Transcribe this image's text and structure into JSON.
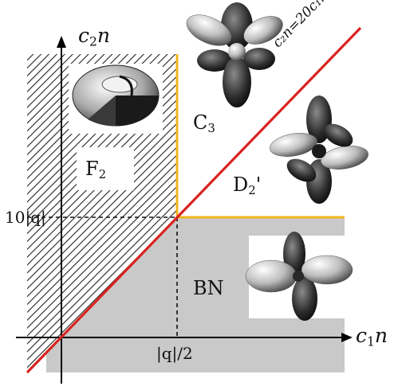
{
  "diagram": {
    "axes": {
      "x_label": "c",
      "x_label_sub": "1",
      "x_label_tail": "n",
      "y_label": "c",
      "y_label_sub": "2",
      "y_label_tail": "n"
    },
    "ticks": {
      "y_tick": "10|q|",
      "x_tick": "|q|/2"
    },
    "boundary_line": {
      "label": "c₂n=20c₁n",
      "color": "#d8231f"
    },
    "phase_boundary_color": "#f2b51c",
    "phases": [
      {
        "label": "F",
        "sub": "2"
      },
      {
        "label": "C",
        "sub": "3"
      },
      {
        "label": "D",
        "sub": "2",
        "suffix": "'"
      },
      {
        "label": "BN",
        "sub": ""
      }
    ],
    "colors": {
      "shaded_region": "#c9c9c9",
      "hatch": "#222222",
      "axis": "#000000"
    }
  }
}
